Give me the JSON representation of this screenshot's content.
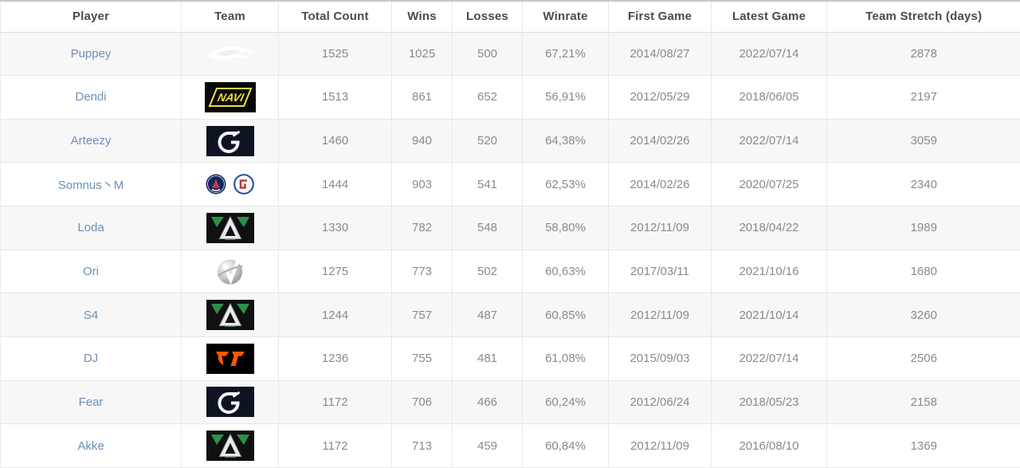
{
  "colors": {
    "player_link": "#6d8fb5",
    "header_text": "#4b4b4b",
    "cell_text": "#8a8a8a",
    "row_stripe": "#f7f7f7",
    "navi_yellow": "#f3df3d",
    "fnatic_orange": "#ff5900",
    "alliance_green": "#2e8f4a"
  },
  "table": {
    "columns": [
      {
        "key": "player",
        "label": "Player"
      },
      {
        "key": "team",
        "label": "Team"
      },
      {
        "key": "total",
        "label": "Total Count"
      },
      {
        "key": "wins",
        "label": "Wins"
      },
      {
        "key": "losses",
        "label": "Losses"
      },
      {
        "key": "winrate",
        "label": "Winrate"
      },
      {
        "key": "first_game",
        "label": "First Game"
      },
      {
        "key": "latest_game",
        "label": "Latest Game"
      },
      {
        "key": "stretch",
        "label": "Team Stretch (days)"
      }
    ],
    "rows": [
      {
        "player": "Puppey",
        "team_icons": [
          "team-secret-logo"
        ],
        "total": "1525",
        "wins": "1025",
        "losses": "500",
        "winrate": "67,21%",
        "first_game": "2014/08/27",
        "latest_game": "2022/07/14",
        "stretch": "2878"
      },
      {
        "player": "Dendi",
        "team_icons": [
          "navi-logo"
        ],
        "total": "1513",
        "wins": "861",
        "losses": "652",
        "winrate": "56,91%",
        "first_game": "2012/05/29",
        "latest_game": "2018/06/05",
        "stretch": "2197"
      },
      {
        "player": "Arteezy",
        "team_icons": [
          "evil-geniuses-logo"
        ],
        "total": "1460",
        "wins": "940",
        "losses": "520",
        "winrate": "64,38%",
        "first_game": "2014/02/26",
        "latest_game": "2022/07/14",
        "stretch": "3059"
      },
      {
        "player": "Somnus丶M",
        "team_icons": [
          "psg-lgd-logo",
          "lgd-logo"
        ],
        "total": "1444",
        "wins": "903",
        "losses": "541",
        "winrate": "62,53%",
        "first_game": "2014/02/26",
        "latest_game": "2020/07/25",
        "stretch": "2340"
      },
      {
        "player": "Loda",
        "team_icons": [
          "alliance-logo"
        ],
        "total": "1330",
        "wins": "782",
        "losses": "548",
        "winrate": "58,80%",
        "first_game": "2012/11/09",
        "latest_game": "2018/04/22",
        "stretch": "1989"
      },
      {
        "player": "Ori",
        "team_icons": [
          "vici-gaming-logo"
        ],
        "total": "1275",
        "wins": "773",
        "losses": "502",
        "winrate": "60,63%",
        "first_game": "2017/03/11",
        "latest_game": "2021/10/16",
        "stretch": "1680"
      },
      {
        "player": "S4",
        "team_icons": [
          "alliance-logo"
        ],
        "total": "1244",
        "wins": "757",
        "losses": "487",
        "winrate": "60,85%",
        "first_game": "2012/11/09",
        "latest_game": "2021/10/14",
        "stretch": "3260"
      },
      {
        "player": "DJ",
        "team_icons": [
          "fnatic-logo"
        ],
        "total": "1236",
        "wins": "755",
        "losses": "481",
        "winrate": "61,08%",
        "first_game": "2015/09/03",
        "latest_game": "2022/07/14",
        "stretch": "2506"
      },
      {
        "player": "Fear",
        "team_icons": [
          "evil-geniuses-logo"
        ],
        "total": "1172",
        "wins": "706",
        "losses": "466",
        "winrate": "60,24%",
        "first_game": "2012/06/24",
        "latest_game": "2018/05/23",
        "stretch": "2158"
      },
      {
        "player": "Akke",
        "team_icons": [
          "alliance-logo"
        ],
        "total": "1172",
        "wins": "713",
        "losses": "459",
        "winrate": "60,84%",
        "first_game": "2012/11/09",
        "latest_game": "2016/08/10",
        "stretch": "1369"
      }
    ]
  }
}
